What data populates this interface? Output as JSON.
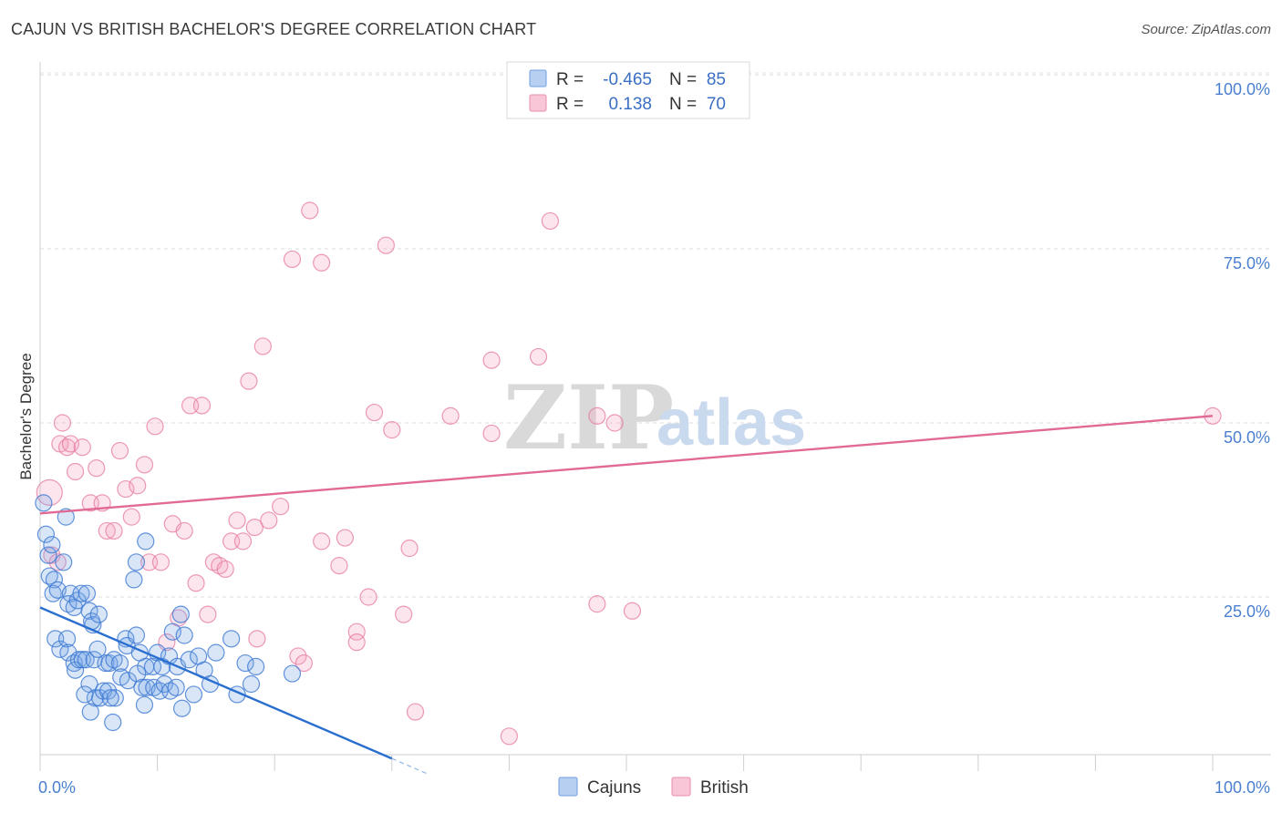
{
  "header": {
    "title": "CAJUN VS BRITISH BACHELOR'S DEGREE CORRELATION CHART",
    "source": "Source: ZipAtlas.com"
  },
  "watermark": {
    "part1": "ZIP",
    "part2": "atlas"
  },
  "legend_top": {
    "rows": [
      {
        "r_label": "R =",
        "r_value": "-0.465",
        "n_label": "N =",
        "n_value": "85"
      },
      {
        "r_label": "R =",
        "r_value": "0.138",
        "n_label": "N =",
        "n_value": "70"
      }
    ]
  },
  "chart_data": {
    "type": "scatter",
    "title": "CAJUN VS BRITISH BACHELOR'S DEGREE CORRELATION CHART",
    "xlabel": "",
    "ylabel": "Bachelor's Degree",
    "xlim": [
      0,
      100
    ],
    "ylim": [
      0,
      100
    ],
    "x_tick_labels": [
      "0.0%",
      "100.0%"
    ],
    "y_tick_labels": [
      "100.0%",
      "75.0%",
      "50.0%",
      "25.0%"
    ],
    "y_tick_values": [
      100,
      75,
      50,
      25
    ],
    "grid": true,
    "legend_position": "bottom-center",
    "colors": {
      "cajuns": "#4a86d8",
      "british": "#e77fa3",
      "cajuns_line": "#2a6fd0",
      "british_line": "#e06a95"
    },
    "series": [
      {
        "name": "Cajuns",
        "R": -0.465,
        "N": 85,
        "trend": {
          "x0": 0,
          "y0": 23.5,
          "x1": 30,
          "y1": 1.8,
          "dash_to_x": 33
        },
        "points": [
          [
            0.3,
            38.5
          ],
          [
            0.5,
            34
          ],
          [
            0.7,
            31
          ],
          [
            1.0,
            32.5
          ],
          [
            0.8,
            28
          ],
          [
            1.2,
            27.5
          ],
          [
            1.1,
            25.5
          ],
          [
            1.5,
            26
          ],
          [
            2.0,
            30
          ],
          [
            2.2,
            36.5
          ],
          [
            2.6,
            25.5
          ],
          [
            2.4,
            24
          ],
          [
            2.9,
            23.5
          ],
          [
            3.2,
            24.5
          ],
          [
            3.5,
            25.5
          ],
          [
            4.0,
            25.5
          ],
          [
            4.2,
            23
          ],
          [
            4.5,
            21
          ],
          [
            1.3,
            19
          ],
          [
            1.7,
            17.5
          ],
          [
            2.3,
            19
          ],
          [
            2.4,
            17
          ],
          [
            2.9,
            15.5
          ],
          [
            3.0,
            14.5
          ],
          [
            3.3,
            16
          ],
          [
            3.6,
            16
          ],
          [
            3.9,
            16
          ],
          [
            4.4,
            21.5
          ],
          [
            4.6,
            16
          ],
          [
            4.9,
            17.5
          ],
          [
            5.0,
            22.5
          ],
          [
            5.6,
            15.5
          ],
          [
            5.9,
            15.5
          ],
          [
            6.3,
            16
          ],
          [
            6.8,
            15.5
          ],
          [
            7.3,
            19
          ],
          [
            7.4,
            18
          ],
          [
            8.2,
            19.5
          ],
          [
            8.5,
            17
          ],
          [
            9.0,
            15
          ],
          [
            9.6,
            15
          ],
          [
            10.0,
            17
          ],
          [
            10.4,
            15
          ],
          [
            11.0,
            16.5
          ],
          [
            11.3,
            20
          ],
          [
            11.7,
            15
          ],
          [
            12.0,
            22.5
          ],
          [
            12.3,
            19.5
          ],
          [
            12.7,
            16
          ],
          [
            13.1,
            11
          ],
          [
            13.5,
            16.5
          ],
          [
            14.0,
            14.5
          ],
          [
            14.5,
            12.5
          ],
          [
            15.0,
            17
          ],
          [
            16.3,
            19
          ],
          [
            16.8,
            11
          ],
          [
            17.5,
            15.5
          ],
          [
            18.0,
            12.5
          ],
          [
            18.4,
            15
          ],
          [
            21.5,
            14
          ],
          [
            4.2,
            12.5
          ],
          [
            4.7,
            10.5
          ],
          [
            5.1,
            10.5
          ],
          [
            5.4,
            11.5
          ],
          [
            5.8,
            11.5
          ],
          [
            6.4,
            10.5
          ],
          [
            6.9,
            13.5
          ],
          [
            7.5,
            13
          ],
          [
            8.3,
            14
          ],
          [
            8.7,
            12
          ],
          [
            9.1,
            12
          ],
          [
            9.7,
            12
          ],
          [
            10.2,
            11.5
          ],
          [
            10.6,
            12.5
          ],
          [
            11.1,
            11.5
          ],
          [
            11.6,
            12
          ],
          [
            12.1,
            9
          ],
          [
            3.8,
            11
          ],
          [
            4.3,
            8.5
          ],
          [
            6.0,
            10.5
          ],
          [
            6.2,
            7
          ],
          [
            8.9,
            9.5
          ],
          [
            9.0,
            33
          ],
          [
            8.2,
            30
          ],
          [
            8.0,
            27.5
          ]
        ]
      },
      {
        "name": "British",
        "R": 0.138,
        "N": 70,
        "trend": {
          "x0": 0,
          "y0": 37,
          "x1": 100,
          "y1": 51
        },
        "points": [
          [
            0.8,
            40
          ],
          [
            1.0,
            31
          ],
          [
            1.5,
            30
          ],
          [
            1.7,
            47
          ],
          [
            1.9,
            50
          ],
          [
            2.3,
            46.5
          ],
          [
            2.6,
            47
          ],
          [
            3.0,
            43
          ],
          [
            3.6,
            46.5
          ],
          [
            4.3,
            38.5
          ],
          [
            4.8,
            43.5
          ],
          [
            5.3,
            38.5
          ],
          [
            5.7,
            34.5
          ],
          [
            6.3,
            34.5
          ],
          [
            6.8,
            46
          ],
          [
            7.3,
            40.5
          ],
          [
            7.8,
            36.5
          ],
          [
            8.3,
            41
          ],
          [
            8.9,
            44
          ],
          [
            9.3,
            30
          ],
          [
            9.8,
            49.5
          ],
          [
            10.3,
            30
          ],
          [
            10.8,
            18.5
          ],
          [
            11.3,
            35.5
          ],
          [
            11.8,
            22
          ],
          [
            12.3,
            34.5
          ],
          [
            12.8,
            52.5
          ],
          [
            13.3,
            27
          ],
          [
            13.8,
            52.5
          ],
          [
            14.3,
            22.5
          ],
          [
            14.8,
            30
          ],
          [
            15.3,
            29.5
          ],
          [
            15.8,
            29
          ],
          [
            16.3,
            33
          ],
          [
            16.8,
            36
          ],
          [
            17.3,
            33
          ],
          [
            17.8,
            56
          ],
          [
            18.3,
            35
          ],
          [
            18.5,
            19
          ],
          [
            19.0,
            61
          ],
          [
            19.5,
            36
          ],
          [
            20.5,
            38
          ],
          [
            21.5,
            73.5
          ],
          [
            22.0,
            16.5
          ],
          [
            22.5,
            15.5
          ],
          [
            23.0,
            80.5
          ],
          [
            24.0,
            73
          ],
          [
            24.0,
            33
          ],
          [
            25.5,
            29.5
          ],
          [
            26.0,
            33.5
          ],
          [
            27.0,
            20
          ],
          [
            27.0,
            18.5
          ],
          [
            28.0,
            25
          ],
          [
            28.5,
            51.5
          ],
          [
            29.5,
            75.5
          ],
          [
            30.0,
            49
          ],
          [
            31.0,
            22.5
          ],
          [
            31.5,
            32
          ],
          [
            32.0,
            8.5
          ],
          [
            35.0,
            51
          ],
          [
            38.5,
            48.5
          ],
          [
            38.5,
            59
          ],
          [
            40.0,
            5
          ],
          [
            42.5,
            59.5
          ],
          [
            43.5,
            79
          ],
          [
            47.5,
            24
          ],
          [
            47.5,
            51
          ],
          [
            49.0,
            50
          ],
          [
            50.5,
            23
          ],
          [
            100.0,
            51
          ]
        ]
      }
    ]
  },
  "legend_bottom": {
    "items": [
      "Cajuns",
      "British"
    ]
  }
}
